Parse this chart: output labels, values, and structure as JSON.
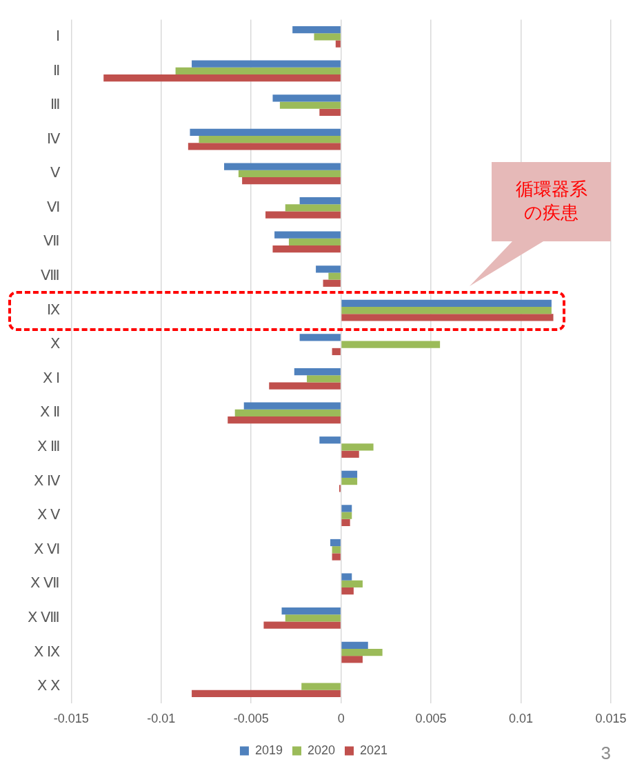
{
  "chart_data": {
    "type": "bar",
    "orientation": "horizontal",
    "categories": [
      "Ⅰ",
      "Ⅱ",
      "Ⅲ",
      "Ⅳ",
      "Ⅴ",
      "Ⅵ",
      "Ⅶ",
      "Ⅷ",
      "Ⅸ",
      "Ⅹ",
      "Ⅹ Ⅰ",
      "Ⅹ Ⅱ",
      "Ⅹ Ⅲ",
      "Ⅹ Ⅳ",
      "Ⅹ Ⅴ",
      "Ⅹ Ⅵ",
      "Ⅹ Ⅶ",
      "Ⅹ Ⅷ",
      "Ⅹ Ⅸ",
      "Ⅹ Ⅹ"
    ],
    "series": [
      {
        "name": "2019",
        "color": "#4f81bd",
        "values": [
          -0.0027,
          -0.0083,
          -0.0038,
          -0.0084,
          -0.0065,
          -0.0023,
          -0.0037,
          -0.0014,
          0.0117,
          -0.0023,
          -0.0026,
          -0.0054,
          -0.0012,
          0.0009,
          0.0006,
          -0.0006,
          0.0006,
          -0.0033,
          0.0015,
          null
        ]
      },
      {
        "name": "2020",
        "color": "#9bbb59",
        "values": [
          -0.0015,
          -0.0092,
          -0.0034,
          -0.0079,
          -0.0057,
          -0.0031,
          -0.0029,
          -0.0007,
          0.0117,
          0.0055,
          -0.0019,
          -0.0059,
          0.0018,
          0.0009,
          0.0006,
          -0.0005,
          0.0012,
          -0.0031,
          0.0023,
          -0.0022
        ]
      },
      {
        "name": "2021",
        "color": "#c0504d",
        "values": [
          -0.0003,
          -0.0132,
          -0.0012,
          -0.0085,
          -0.0055,
          -0.0042,
          -0.0038,
          -0.001,
          0.0118,
          -0.0005,
          -0.004,
          -0.0063,
          0.001,
          -0.0001,
          0.0005,
          -0.0005,
          0.0007,
          -0.0043,
          0.0012,
          -0.0083
        ]
      }
    ],
    "xlim": [
      -0.015,
      0.015
    ],
    "xticks": [
      -0.015,
      -0.01,
      -0.005,
      0,
      0.005,
      0.01,
      0.015
    ],
    "grid": "x",
    "legend": "bottom",
    "annotations": [
      "循環器系の疾患",
      "3"
    ]
  }
}
